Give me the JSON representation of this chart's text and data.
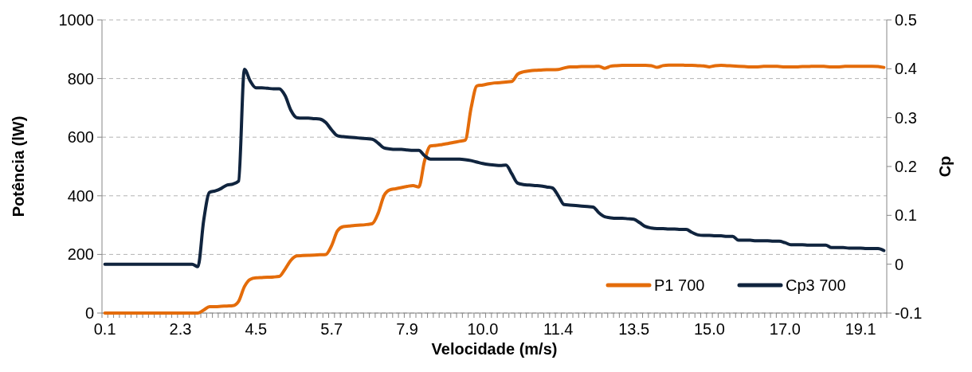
{
  "chart_data": {
    "type": "line",
    "xlabel": "Velocidade (m/s)",
    "ylabel": "Potência (lW)",
    "y2label": "Cp",
    "categories": [
      "0.1",
      null,
      null,
      null,
      null,
      null,
      null,
      null,
      null,
      null,
      null,
      null,
      null,
      "2.3",
      null,
      null,
      null,
      null,
      null,
      null,
      null,
      null,
      null,
      null,
      null,
      null,
      "4.5",
      null,
      null,
      null,
      null,
      null,
      null,
      null,
      null,
      null,
      null,
      null,
      null,
      "5.7",
      null,
      null,
      null,
      null,
      null,
      null,
      null,
      null,
      null,
      null,
      null,
      null,
      "7.9",
      null,
      null,
      null,
      null,
      null,
      null,
      null,
      null,
      null,
      null,
      null,
      null,
      "10.0",
      null,
      null,
      null,
      null,
      null,
      null,
      null,
      null,
      null,
      null,
      null,
      null,
      "11.4",
      null,
      null,
      null,
      null,
      null,
      null,
      null,
      null,
      null,
      null,
      null,
      null,
      "13.5",
      null,
      null,
      null,
      null,
      null,
      null,
      null,
      null,
      null,
      null,
      null,
      null,
      "15.0",
      null,
      null,
      null,
      null,
      null,
      null,
      null,
      null,
      null,
      null,
      null,
      null,
      "17.0",
      null,
      null,
      null,
      null,
      null,
      null,
      null,
      null,
      null,
      null,
      null,
      null,
      "19.1",
      null,
      null,
      null,
      null
    ],
    "series": [
      {
        "name": "P1 700",
        "color": "#e46c0a",
        "values": [
          0,
          0,
          0,
          0,
          0,
          0,
          0,
          0,
          0,
          0,
          0,
          0,
          0,
          0,
          0,
          0,
          0,
          10,
          22,
          22,
          23,
          24,
          25,
          40,
          90,
          115,
          120,
          121,
          122,
          123,
          125,
          150,
          180,
          195,
          196,
          197,
          198,
          199,
          200,
          230,
          280,
          295,
          297,
          299,
          300,
          302,
          305,
          340,
          400,
          420,
          424,
          428,
          432,
          435,
          430,
          520,
          570,
          572,
          575,
          578,
          582,
          586,
          590,
          700,
          775,
          778,
          782,
          785,
          786,
          788,
          790,
          815,
          823,
          826,
          828,
          829,
          830,
          830,
          831,
          836,
          840,
          840,
          841,
          841,
          841,
          842,
          835,
          842,
          844,
          845,
          845,
          845,
          845,
          845,
          844,
          838,
          844,
          846,
          846,
          846,
          845,
          845,
          844,
          843,
          840,
          844,
          845,
          844,
          843,
          842,
          841,
          840,
          840,
          841,
          842,
          842,
          841,
          840,
          840,
          840,
          841,
          841,
          842,
          842,
          841,
          840,
          840,
          841,
          842,
          842,
          842,
          842,
          842,
          841,
          838
        ]
      },
      {
        "name": "Cp3 700",
        "color": "#10243e",
        "axis": "y2",
        "values": [
          0,
          0,
          0,
          0,
          0,
          0,
          0,
          0,
          0,
          0,
          0,
          0,
          0,
          0,
          0,
          0,
          -0.005,
          0.09,
          0.147,
          0.15,
          0.155,
          0.162,
          0.164,
          0.17,
          0.399,
          0.375,
          0.361,
          0.361,
          0.36,
          0.359,
          0.359,
          0.345,
          0.315,
          0.3,
          0.299,
          0.299,
          0.298,
          0.297,
          0.29,
          0.275,
          0.263,
          0.261,
          0.26,
          0.259,
          0.258,
          0.257,
          0.256,
          0.248,
          0.238,
          0.236,
          0.235,
          0.235,
          0.234,
          0.233,
          0.233,
          0.222,
          0.215,
          0.215,
          0.215,
          0.215,
          0.215,
          0.215,
          0.214,
          0.212,
          0.209,
          0.206,
          0.204,
          0.203,
          0.202,
          0.203,
          0.185,
          0.166,
          0.163,
          0.162,
          0.161,
          0.16,
          0.158,
          0.156,
          0.14,
          0.122,
          0.121,
          0.12,
          0.119,
          0.118,
          0.117,
          0.105,
          0.097,
          0.095,
          0.094,
          0.094,
          0.093,
          0.092,
          0.085,
          0.077,
          0.074,
          0.073,
          0.073,
          0.072,
          0.072,
          0.071,
          0.071,
          0.065,
          0.06,
          0.059,
          0.059,
          0.058,
          0.058,
          0.057,
          0.057,
          0.049,
          0.049,
          0.049,
          0.048,
          0.048,
          0.048,
          0.047,
          0.047,
          0.044,
          0.04,
          0.04,
          0.04,
          0.039,
          0.039,
          0.039,
          0.039,
          0.034,
          0.034,
          0.034,
          0.033,
          0.033,
          0.033,
          0.032,
          0.032,
          0.032,
          0.028
        ]
      }
    ],
    "ylim": [
      0,
      1000
    ],
    "yticks": [
      0,
      200,
      400,
      600,
      800,
      1000
    ],
    "y2lim": [
      -0.1,
      0.5
    ],
    "y2ticks": [
      -0.1,
      0,
      0.1,
      0.2,
      0.3,
      0.4,
      0.5
    ],
    "grid": "y",
    "line_style": "solid",
    "legend": "bottom right"
  }
}
